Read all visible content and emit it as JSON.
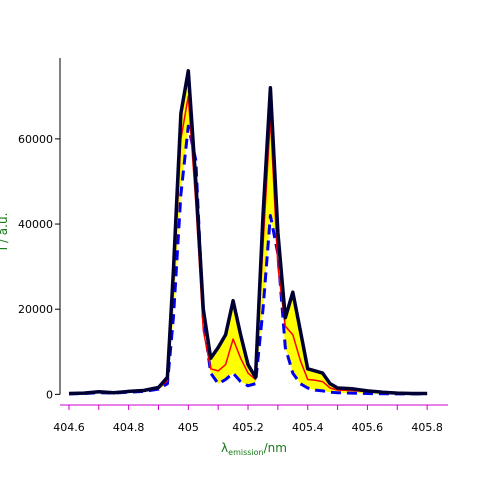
{
  "chart_data": {
    "type": "area",
    "title": "",
    "xlabel": {
      "main": "λ",
      "sub": "emission",
      "unit": "/nm"
    },
    "ylabel": "I / a.u.",
    "xlim": [
      404.57,
      405.87
    ],
    "ylim": [
      -2500,
      79000
    ],
    "x_ticks": [
      404.6,
      404.7,
      404.8,
      404.9,
      405.0,
      405.1,
      405.2,
      405.3,
      405.4,
      405.5,
      405.6,
      405.7,
      405.8
    ],
    "x_tick_labels": [
      "404.6",
      "",
      "404.8",
      "",
      "405",
      "",
      "405.2",
      "",
      "405.4",
      "",
      "405.6",
      "",
      "405.8"
    ],
    "y_ticks": [
      0,
      20000,
      40000,
      60000
    ],
    "y_tick_labels": [
      "0",
      "20000",
      "40000",
      "60000"
    ],
    "x": [
      404.6,
      404.65,
      404.7,
      404.75,
      404.8,
      404.85,
      404.9,
      404.93,
      404.95,
      404.975,
      405.0,
      405.025,
      405.05,
      405.075,
      405.1,
      405.125,
      405.15,
      405.175,
      405.2,
      405.225,
      405.25,
      405.275,
      405.3,
      405.325,
      405.35,
      405.375,
      405.4,
      405.425,
      405.45,
      405.475,
      405.5,
      405.55,
      405.6,
      405.65,
      405.7,
      405.75,
      405.8
    ],
    "series": [
      {
        "role": "upper",
        "style": "solid",
        "color": "#000033",
        "values": [
          200,
          300,
          600,
          400,
          700,
          900,
          1600,
          4000,
          29000,
          66000,
          76000,
          50000,
          20000,
          8500,
          11000,
          14000,
          22000,
          14000,
          7000,
          4000,
          42000,
          72000,
          38000,
          18000,
          24000,
          15000,
          6000,
          5500,
          5000,
          2500,
          1500,
          1300,
          800,
          500,
          300,
          200,
          200
        ]
      },
      {
        "role": "middle",
        "style": "solid",
        "color": "#ff0000",
        "values": [
          150,
          250,
          500,
          350,
          600,
          800,
          1400,
          3200,
          25000,
          60000,
          70000,
          45000,
          15000,
          6000,
          5500,
          7000,
          13000,
          8500,
          5000,
          3500,
          35000,
          65000,
          30000,
          16000,
          14000,
          8000,
          3500,
          3300,
          3000,
          1500,
          1000,
          900,
          600,
          400,
          250,
          150,
          150
        ]
      },
      {
        "role": "lower",
        "style": "dashed",
        "color": "#0000ee",
        "values": [
          100,
          200,
          400,
          300,
          500,
          700,
          1200,
          2500,
          18000,
          47000,
          63000,
          55000,
          18000,
          5000,
          2500,
          3500,
          5000,
          3000,
          2000,
          2500,
          20000,
          42000,
          33000,
          11000,
          5000,
          2500,
          1500,
          1000,
          800,
          500,
          400,
          300,
          200,
          150,
          100,
          100,
          100
        ]
      }
    ],
    "fill_between": {
      "upper": "upper",
      "lower": "lower",
      "color": "#ffff00"
    },
    "grid": false,
    "legend": "none",
    "axis_color": "#cc00cc",
    "label_color": "#1a7a1a"
  }
}
